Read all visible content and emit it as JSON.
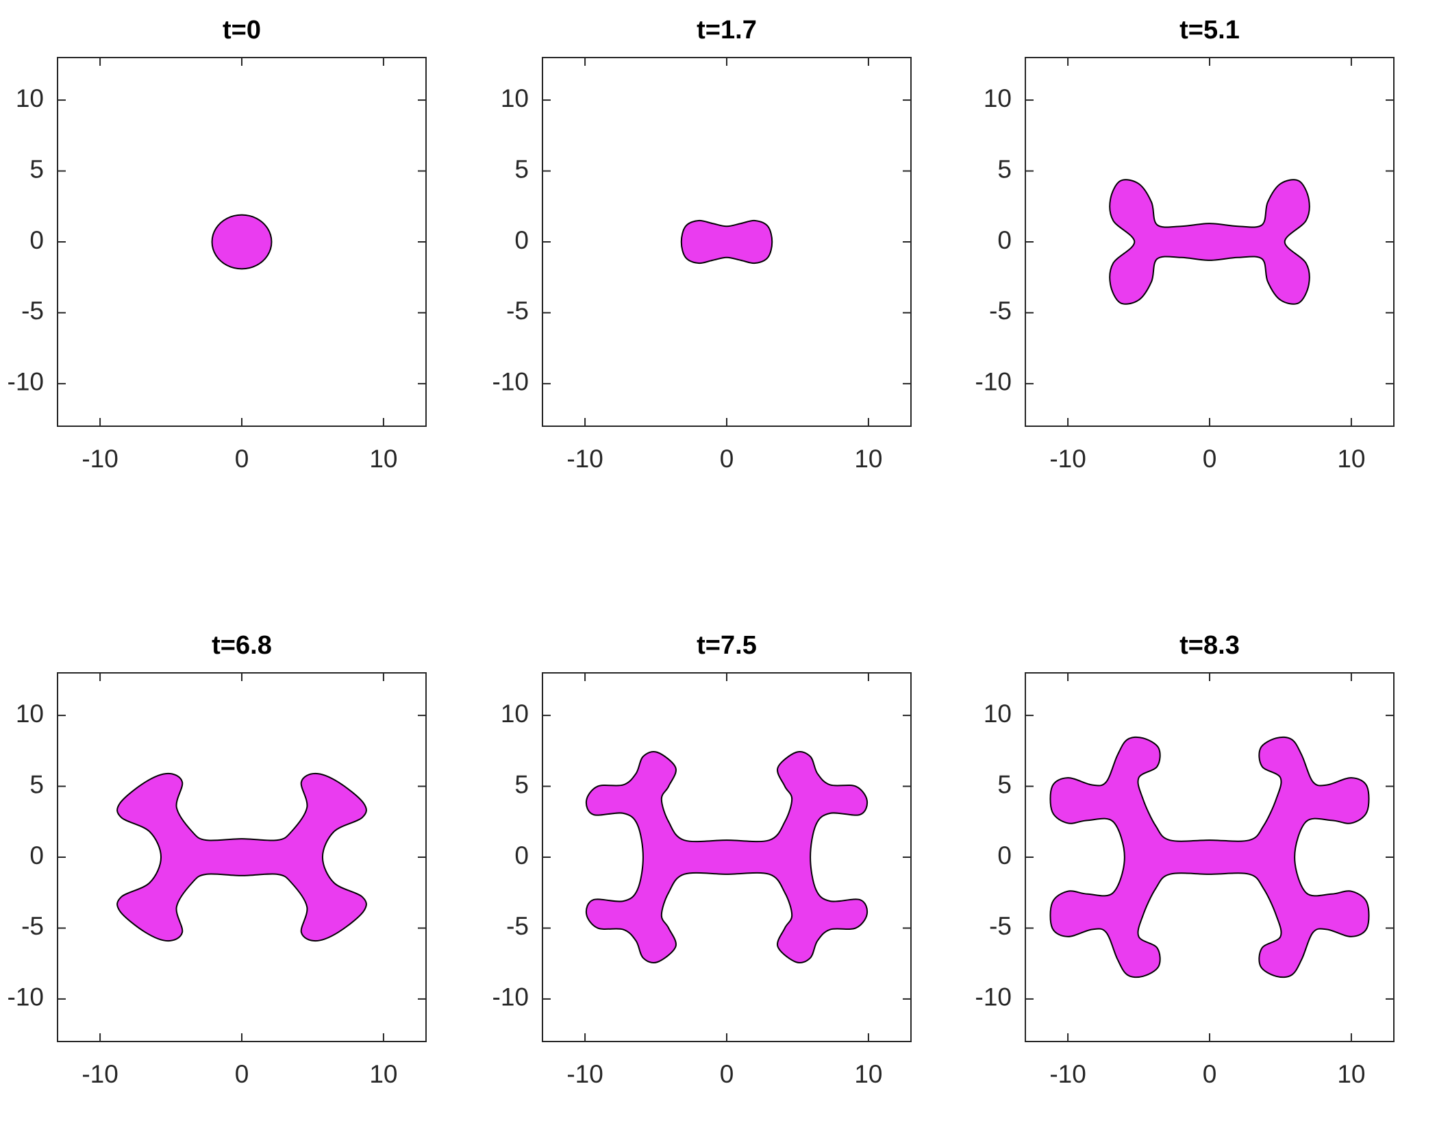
{
  "chart_data": [
    {
      "type": "polygon",
      "title": "t=0",
      "color": "#ea3cf0",
      "x": [
        2.1,
        1.82,
        1.05,
        0,
        -1.05,
        -1.82,
        -2.1,
        -1.82,
        -1.05,
        0,
        1.05,
        1.82
      ],
      "values": [
        0,
        0.95,
        1.65,
        1.9,
        1.65,
        0.95,
        0,
        -0.95,
        -1.65,
        -1.9,
        -1.65,
        -0.95
      ],
      "xlim": [
        -13,
        13
      ],
      "ylim": [
        -13,
        13
      ],
      "xticks": [
        -10,
        0,
        10
      ],
      "yticks": [
        -10,
        -5,
        0,
        5,
        10
      ]
    },
    {
      "type": "polygon",
      "title": "t=1.7",
      "color": "#ea3cf0",
      "x": [
        3.2,
        2.9,
        2,
        1,
        0,
        -1,
        -2,
        -2.9,
        -3.2,
        -2.9,
        -2,
        -1,
        0,
        1,
        2,
        2.9
      ],
      "values": [
        0,
        1.1,
        1.5,
        1.3,
        1.1,
        1.3,
        1.5,
        1.1,
        0,
        -1.1,
        -1.5,
        -1.3,
        -1.1,
        -1.3,
        -1.5,
        -1.1
      ],
      "xlim": [
        -13,
        13
      ],
      "ylim": [
        -13,
        13
      ],
      "xticks": [
        -10,
        0,
        10
      ],
      "yticks": [
        -10,
        -5,
        0,
        5,
        10
      ]
    },
    {
      "type": "polygon",
      "title": "t=5.1",
      "color": "#ea3cf0",
      "x": [
        5.3,
        6.8,
        7,
        6.3,
        5,
        4.1,
        3.7,
        2,
        0,
        -2,
        -3.7,
        -4.1,
        -5,
        -6.3,
        -7,
        -6.8,
        -5.3,
        -6.8,
        -7,
        -6.3,
        -5,
        -4.1,
        -3.7,
        -2,
        0,
        2,
        3.7,
        4.1,
        5,
        6.3,
        7,
        6.8
      ],
      "values": [
        0,
        1.5,
        3,
        4.3,
        4.1,
        2.8,
        1.2,
        1.1,
        1.3,
        1.1,
        1.2,
        2.8,
        4.1,
        4.3,
        3,
        1.5,
        0,
        -1.5,
        -3,
        -4.3,
        -4.1,
        -2.8,
        -1.2,
        -1.1,
        -1.3,
        -1.1,
        -1.2,
        -2.8,
        -4.1,
        -4.3,
        -3,
        -1.5
      ],
      "xlim": [
        -13,
        13
      ],
      "ylim": [
        -13,
        13
      ],
      "xticks": [
        -10,
        0,
        10
      ],
      "yticks": [
        -10,
        -5,
        0,
        5,
        10
      ]
    },
    {
      "type": "polygon",
      "title": "t=6.8",
      "color": "#ea3cf0",
      "x": [
        5.7,
        6.5,
        8.5,
        8.6,
        6.8,
        5.2,
        4.2,
        4.6,
        3.5,
        2.5,
        0,
        -2.5,
        -3.5,
        -4.6,
        -4.2,
        -5.2,
        -6.8,
        -8.6,
        -8.5,
        -6.5,
        -5.7,
        -6.5,
        -8.5,
        -8.6,
        -6.8,
        -5.2,
        -4.2,
        -4.6,
        -3.5,
        -2.5,
        0,
        2.5,
        3.5,
        4.6,
        4.2,
        5.2,
        6.8,
        8.6,
        8.5,
        6.5
      ],
      "values": [
        0,
        1.8,
        2.8,
        3.8,
        5.3,
        5.9,
        5.3,
        3.5,
        1.8,
        1.2,
        1.3,
        1.2,
        1.8,
        3.5,
        5.3,
        5.9,
        5.3,
        3.8,
        2.8,
        1.8,
        0,
        -1.8,
        -2.8,
        -3.8,
        -5.3,
        -5.9,
        -5.3,
        -3.5,
        -1.8,
        -1.2,
        -1.3,
        -1.2,
        -1.8,
        -3.5,
        -5.3,
        -5.9,
        -5.3,
        -3.8,
        -2.8,
        -1.8
      ],
      "xlim": [
        -13,
        13
      ],
      "ylim": [
        -13,
        13
      ],
      "xticks": [
        -10,
        0,
        10
      ],
      "yticks": [
        -10,
        -5,
        0,
        5,
        10
      ]
    },
    {
      "type": "polygon",
      "title": "t=7.5",
      "color": "#ea3cf0",
      "x": [
        5.9,
        6.3,
        7.3,
        9.4,
        9.9,
        9.1,
        7.3,
        6.4,
        5.9,
        4.9,
        3.6,
        4.1,
        4.6,
        4.1,
        3,
        0,
        -3,
        -4.1,
        -4.6,
        -4.1,
        -3.6,
        -4.9,
        -5.9,
        -6.4,
        -7.3,
        -9.1,
        -9.9,
        -9.4,
        -7.3,
        -6.3,
        -5.9,
        -6.3,
        -7.3,
        -9.4,
        -9.9,
        -9.1,
        -7.3,
        -6.4,
        -5.9,
        -4.9,
        -3.6,
        -4.1,
        -4.6,
        -4.1,
        -3,
        0,
        3,
        4.1,
        4.6,
        4.1,
        3.6,
        4.9,
        5.9,
        6.4,
        7.3,
        9.1,
        9.9,
        9.4,
        7.3,
        6.3
      ],
      "values": [
        0,
        2.3,
        3.1,
        3,
        4,
        5,
        5.1,
        5.9,
        7.1,
        7.4,
        6.3,
        5,
        4.1,
        2.5,
        1.2,
        1.2,
        1.2,
        2.5,
        4.1,
        5,
        6.3,
        7.4,
        7.1,
        5.9,
        5.1,
        5,
        4,
        3,
        3.1,
        2.3,
        0,
        -2.3,
        -3.1,
        -3,
        -4,
        -5,
        -5.1,
        -5.9,
        -7.1,
        -7.4,
        -6.3,
        -5,
        -4.1,
        -2.5,
        -1.2,
        -1.2,
        -1.2,
        -2.5,
        -4.1,
        -5,
        -6.3,
        -7.4,
        -7.1,
        -5.9,
        -5.1,
        -5,
        -4,
        -3,
        -3.1,
        -2.3
      ],
      "xlim": [
        -13,
        13
      ],
      "ylim": [
        -13,
        13
      ],
      "xticks": [
        -10,
        0,
        10
      ],
      "yticks": [
        -10,
        -5,
        0,
        5,
        10
      ]
    },
    {
      "type": "polygon",
      "title": "t=8.3",
      "color": "#ea3cf0",
      "x": [
        6,
        6.8,
        8.6,
        10,
        11.1,
        11.1,
        10,
        8.3,
        7.3,
        6.5,
        5.8,
        4.7,
        3.6,
        3.7,
        5,
        4.7,
        3.8,
        2.8,
        0,
        -2.8,
        -3.8,
        -4.7,
        -5,
        -3.7,
        -3.6,
        -4.7,
        -5.8,
        -6.5,
        -7.3,
        -8.3,
        -10,
        -11.1,
        -11.1,
        -10,
        -8.6,
        -6.8,
        -6,
        -6.8,
        -8.6,
        -10,
        -11.1,
        -11.1,
        -10,
        -8.3,
        -7.3,
        -6.5,
        -5.8,
        -4.7,
        -3.6,
        -3.7,
        -5,
        -4.7,
        -3.8,
        -2.8,
        0,
        2.8,
        3.8,
        4.7,
        5,
        3.7,
        3.6,
        4.7,
        5.8,
        6.5,
        7.3,
        8.3,
        10,
        11.1,
        11.1,
        10,
        8.6,
        6.8
      ],
      "values": [
        0,
        2.5,
        2.6,
        2.4,
        3.2,
        5,
        5.6,
        5.1,
        5.3,
        7.2,
        8.3,
        8.4,
        7.7,
        6.4,
        5.6,
        4.1,
        2.2,
        1.2,
        1.2,
        1.2,
        2.2,
        4.1,
        5.6,
        6.4,
        7.7,
        8.4,
        8.3,
        7.2,
        5.3,
        5.1,
        5.6,
        5,
        3.2,
        2.4,
        2.6,
        2.5,
        0,
        -2.5,
        -2.6,
        -2.4,
        -3.2,
        -5,
        -5.6,
        -5.1,
        -5.3,
        -7.2,
        -8.3,
        -8.4,
        -7.7,
        -6.4,
        -5.6,
        -4.1,
        -2.2,
        -1.2,
        -1.2,
        -1.2,
        -2.2,
        -4.1,
        -5.6,
        -6.4,
        -7.7,
        -8.4,
        -8.3,
        -7.2,
        -5.3,
        -5.1,
        -5.6,
        -5,
        -3.2,
        -2.4,
        -2.6,
        -2.5
      ],
      "xlim": [
        -13,
        13
      ],
      "ylim": [
        -13,
        13
      ],
      "xticks": [
        -10,
        0,
        10
      ],
      "yticks": [
        -10,
        -5,
        0,
        5,
        10
      ]
    }
  ]
}
